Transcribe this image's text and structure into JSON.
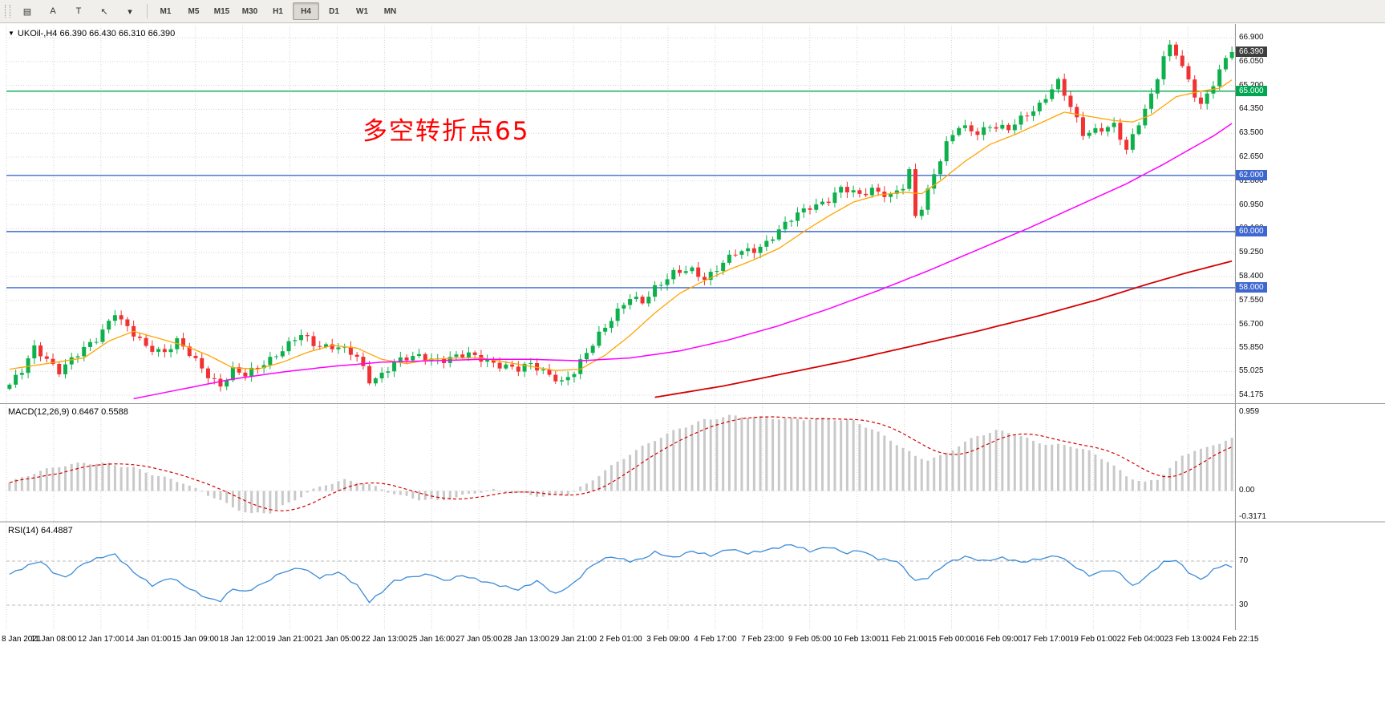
{
  "toolbar": {
    "tools": [
      {
        "name": "chart-objects",
        "glyph": "▤"
      },
      {
        "name": "text-tool",
        "glyph": "A"
      },
      {
        "name": "label-tool",
        "glyph": "T"
      },
      {
        "name": "cursor-tool",
        "glyph": "↖"
      },
      {
        "name": "tools-dropdown",
        "glyph": "▾"
      }
    ],
    "timeframes": [
      "M1",
      "M5",
      "M15",
      "M30",
      "H1",
      "H4",
      "D1",
      "W1",
      "MN"
    ],
    "active_timeframe": "H4"
  },
  "chart": {
    "title": "UKOil-,H4 66.390 66.430 66.310 66.390",
    "symbol": "UKOil-",
    "timeframe": "H4",
    "annotation": "多空转折点65",
    "current_price_label": "66.390",
    "price_axis_labels": [
      "66.900",
      "66.050",
      "65.200",
      "64.350",
      "63.500",
      "62.650",
      "61.800",
      "60.950",
      "60.100",
      "59.250",
      "58.400",
      "57.550",
      "56.700",
      "55.850",
      "55.025",
      "54.175"
    ],
    "time_axis_labels": [
      "8 Jan 2021",
      "11 Jan 08:00",
      "12 Jan 17:00",
      "14 Jan 01:00",
      "15 Jan 09:00",
      "18 Jan 12:00",
      "19 Jan 21:00",
      "21 Jan 05:00",
      "22 Jan 13:00",
      "25 Jan 16:00",
      "27 Jan 05:00",
      "28 Jan 13:00",
      "29 Jan 21:00",
      "2 Feb 01:00",
      "3 Feb 09:00",
      "4 Feb 17:00",
      "7 Feb 23:00",
      "9 Feb 05:00",
      "10 Feb 13:00",
      "11 Feb 21:00",
      "15 Feb 00:00",
      "16 Feb 09:00",
      "17 Feb 17:00",
      "19 Feb 01:00",
      "22 Feb 04:00",
      "23 Feb 13:00",
      "24 Feb 22:15"
    ],
    "horizontal_lines": [
      {
        "label": "65.000",
        "value": 65.0,
        "color": "#00a651"
      },
      {
        "label": "62.000",
        "value": 62.0,
        "color": "#3e68d0"
      },
      {
        "label": "60.000",
        "value": 60.0,
        "color": "#3e68d0"
      },
      {
        "label": "58.000",
        "value": 58.0,
        "color": "#3e68d0"
      }
    ]
  },
  "macd": {
    "title_label": "MACD(12,26,9)",
    "title_values": "0.6467 0.5588",
    "axis_labels": [
      "0.959",
      "0.00",
      "-0.3171"
    ]
  },
  "rsi": {
    "title_label": "RSI(14)",
    "title_value": "64.4887",
    "levels": [
      70,
      30
    ]
  },
  "colors": {
    "bull": "#0eb04c",
    "bear": "#f03232",
    "ma_fast": "#ffa500",
    "ma_mid": "#ff00ff",
    "ma_slow": "#d40000",
    "macd_hist": "#c9c9c9",
    "macd_signal": "#d40000",
    "rsi_line": "#3c8cd8",
    "grid": "#d4d4d4",
    "annotation": "#ff0000",
    "price_badge_bg": "#3f3f3f"
  },
  "chart_data": {
    "type": "candlestick",
    "symbol": "UKOil-",
    "timeframe": "H4",
    "bars": 198,
    "ylim": [
      53.89,
      67.33
    ],
    "ohlc_current": {
      "open": 66.39,
      "high": 66.43,
      "low": 66.31,
      "close": 66.39
    },
    "close_keyframes": [
      [
        0,
        54.55
      ],
      [
        2,
        55.0
      ],
      [
        4,
        55.85
      ],
      [
        6,
        55.5
      ],
      [
        8,
        55.05
      ],
      [
        11,
        55.6
      ],
      [
        14,
        56.2
      ],
      [
        17,
        57.15
      ],
      [
        18,
        56.8
      ],
      [
        20,
        56.3
      ],
      [
        22,
        55.9
      ],
      [
        25,
        55.75
      ],
      [
        27,
        56.1
      ],
      [
        29,
        55.6
      ],
      [
        32,
        54.9
      ],
      [
        34,
        54.55
      ],
      [
        36,
        55.05
      ],
      [
        38,
        54.85
      ],
      [
        41,
        55.35
      ],
      [
        44,
        55.8
      ],
      [
        47,
        56.3
      ],
      [
        49,
        56.0
      ],
      [
        53,
        55.9
      ],
      [
        56,
        55.5
      ],
      [
        58,
        54.7
      ],
      [
        60,
        54.95
      ],
      [
        62,
        55.35
      ],
      [
        66,
        55.55
      ],
      [
        70,
        55.45
      ],
      [
        74,
        55.6
      ],
      [
        77,
        55.45
      ],
      [
        79,
        55.25
      ],
      [
        82,
        55.05
      ],
      [
        84,
        55.3
      ],
      [
        87,
        54.95
      ],
      [
        89,
        54.6
      ],
      [
        91,
        54.95
      ],
      [
        93,
        55.7
      ],
      [
        95,
        56.4
      ],
      [
        97,
        56.9
      ],
      [
        100,
        57.6
      ],
      [
        102,
        57.5
      ],
      [
        104,
        58.05
      ],
      [
        107,
        58.5
      ],
      [
        110,
        58.6
      ],
      [
        112,
        58.35
      ],
      [
        115,
        58.9
      ],
      [
        117,
        59.2
      ],
      [
        120,
        59.35
      ],
      [
        122,
        59.65
      ],
      [
        124,
        60.05
      ],
      [
        127,
        60.6
      ],
      [
        129,
        60.9
      ],
      [
        132,
        61.15
      ],
      [
        134,
        61.5
      ],
      [
        137,
        61.3
      ],
      [
        139,
        61.55
      ],
      [
        142,
        61.25
      ],
      [
        144,
        61.55
      ],
      [
        145,
        62.1
      ],
      [
        146,
        60.55
      ],
      [
        147,
        60.9
      ],
      [
        149,
        62.1
      ],
      [
        151,
        63.1
      ],
      [
        153,
        63.7
      ],
      [
        156,
        63.55
      ],
      [
        158,
        63.8
      ],
      [
        161,
        63.6
      ],
      [
        163,
        64.0
      ],
      [
        166,
        64.55
      ],
      [
        168,
        65.1
      ],
      [
        169,
        65.3
      ],
      [
        171,
        64.4
      ],
      [
        173,
        63.5
      ],
      [
        175,
        63.65
      ],
      [
        178,
        63.75
      ],
      [
        180,
        62.85
      ],
      [
        182,
        63.9
      ],
      [
        184,
        64.9
      ],
      [
        186,
        66.2
      ],
      [
        187,
        66.55
      ],
      [
        188,
        66.3
      ],
      [
        189,
        65.8
      ],
      [
        191,
        64.9
      ],
      [
        192,
        64.55
      ],
      [
        194,
        65.3
      ],
      [
        196,
        66.15
      ],
      [
        197,
        66.39
      ]
    ],
    "ma_fast_keyframes": [
      [
        0,
        55.1
      ],
      [
        6,
        55.3
      ],
      [
        12,
        55.5
      ],
      [
        16,
        56.1
      ],
      [
        20,
        56.45
      ],
      [
        24,
        56.2
      ],
      [
        28,
        55.95
      ],
      [
        32,
        55.6
      ],
      [
        36,
        55.15
      ],
      [
        40,
        55.1
      ],
      [
        44,
        55.35
      ],
      [
        48,
        55.7
      ],
      [
        52,
        55.95
      ],
      [
        56,
        55.85
      ],
      [
        60,
        55.45
      ],
      [
        64,
        55.3
      ],
      [
        68,
        55.45
      ],
      [
        72,
        55.5
      ],
      [
        76,
        55.5
      ],
      [
        80,
        55.35
      ],
      [
        84,
        55.2
      ],
      [
        88,
        55.05
      ],
      [
        92,
        55.1
      ],
      [
        96,
        55.6
      ],
      [
        100,
        56.3
      ],
      [
        104,
        57.1
      ],
      [
        108,
        57.8
      ],
      [
        112,
        58.25
      ],
      [
        116,
        58.65
      ],
      [
        120,
        59.0
      ],
      [
        124,
        59.4
      ],
      [
        128,
        60.0
      ],
      [
        132,
        60.55
      ],
      [
        136,
        61.05
      ],
      [
        140,
        61.3
      ],
      [
        144,
        61.4
      ],
      [
        147,
        61.35
      ],
      [
        150,
        61.8
      ],
      [
        154,
        62.5
      ],
      [
        158,
        63.1
      ],
      [
        162,
        63.45
      ],
      [
        166,
        63.85
      ],
      [
        170,
        64.25
      ],
      [
        174,
        64.1
      ],
      [
        178,
        63.95
      ],
      [
        181,
        63.9
      ],
      [
        184,
        64.15
      ],
      [
        188,
        64.8
      ],
      [
        192,
        65.0
      ],
      [
        195,
        65.1
      ],
      [
        197,
        65.4
      ]
    ],
    "ma_mid_keyframes": [
      [
        20,
        54.05
      ],
      [
        28,
        54.4
      ],
      [
        36,
        54.75
      ],
      [
        44,
        55.0
      ],
      [
        52,
        55.2
      ],
      [
        60,
        55.35
      ],
      [
        68,
        55.4
      ],
      [
        76,
        55.45
      ],
      [
        84,
        55.45
      ],
      [
        92,
        55.4
      ],
      [
        100,
        55.5
      ],
      [
        108,
        55.75
      ],
      [
        116,
        56.15
      ],
      [
        124,
        56.65
      ],
      [
        132,
        57.25
      ],
      [
        140,
        57.9
      ],
      [
        148,
        58.6
      ],
      [
        156,
        59.35
      ],
      [
        164,
        60.1
      ],
      [
        172,
        60.9
      ],
      [
        180,
        61.7
      ],
      [
        186,
        62.4
      ],
      [
        190,
        62.9
      ],
      [
        194,
        63.4
      ],
      [
        197,
        63.85
      ]
    ],
    "ma_slow_keyframes": [
      [
        104,
        54.1
      ],
      [
        115,
        54.5
      ],
      [
        125,
        54.95
      ],
      [
        135,
        55.4
      ],
      [
        145,
        55.9
      ],
      [
        155,
        56.4
      ],
      [
        165,
        56.95
      ],
      [
        175,
        57.55
      ],
      [
        183,
        58.1
      ],
      [
        190,
        58.55
      ],
      [
        197,
        58.95
      ]
    ],
    "macd_keyframes": [
      [
        0,
        0.1
      ],
      [
        4,
        0.22
      ],
      [
        8,
        0.3
      ],
      [
        12,
        0.34
      ],
      [
        16,
        0.33
      ],
      [
        20,
        0.28
      ],
      [
        24,
        0.18
      ],
      [
        28,
        0.1
      ],
      [
        30,
        0.02
      ],
      [
        33,
        -0.08
      ],
      [
        36,
        -0.2
      ],
      [
        39,
        -0.28
      ],
      [
        42,
        -0.26
      ],
      [
        45,
        -0.15
      ],
      [
        48,
        -0.02
      ],
      [
        51,
        0.08
      ],
      [
        54,
        0.13
      ],
      [
        57,
        0.1
      ],
      [
        60,
        0.02
      ],
      [
        63,
        -0.06
      ],
      [
        66,
        -0.1
      ],
      [
        69,
        -0.12
      ],
      [
        72,
        -0.08
      ],
      [
        75,
        -0.02
      ],
      [
        78,
        0.01
      ],
      [
        81,
        -0.02
      ],
      [
        84,
        -0.05
      ],
      [
        87,
        -0.07
      ],
      [
        90,
        -0.04
      ],
      [
        93,
        0.08
      ],
      [
        96,
        0.25
      ],
      [
        100,
        0.45
      ],
      [
        104,
        0.62
      ],
      [
        108,
        0.76
      ],
      [
        112,
        0.86
      ],
      [
        116,
        0.91
      ],
      [
        120,
        0.9
      ],
      [
        124,
        0.88
      ],
      [
        128,
        0.87
      ],
      [
        132,
        0.88
      ],
      [
        136,
        0.85
      ],
      [
        139,
        0.75
      ],
      [
        142,
        0.62
      ],
      [
        144,
        0.52
      ],
      [
        146,
        0.42
      ],
      [
        148,
        0.38
      ],
      [
        150,
        0.42
      ],
      [
        153,
        0.55
      ],
      [
        156,
        0.67
      ],
      [
        159,
        0.73
      ],
      [
        162,
        0.7
      ],
      [
        165,
        0.6
      ],
      [
        168,
        0.56
      ],
      [
        171,
        0.55
      ],
      [
        174,
        0.48
      ],
      [
        177,
        0.36
      ],
      [
        180,
        0.18
      ],
      [
        183,
        0.1
      ],
      [
        185,
        0.14
      ],
      [
        187,
        0.28
      ],
      [
        189,
        0.42
      ],
      [
        191,
        0.5
      ],
      [
        193,
        0.52
      ],
      [
        195,
        0.58
      ],
      [
        197,
        0.6467
      ]
    ],
    "rsi_keyframes": [
      [
        0,
        58
      ],
      [
        3,
        66
      ],
      [
        5,
        70
      ],
      [
        7,
        60
      ],
      [
        9,
        55
      ],
      [
        12,
        68
      ],
      [
        15,
        74
      ],
      [
        17,
        76
      ],
      [
        20,
        60
      ],
      [
        23,
        48
      ],
      [
        26,
        55
      ],
      [
        29,
        45
      ],
      [
        32,
        36
      ],
      [
        34,
        34
      ],
      [
        36,
        45
      ],
      [
        38,
        42
      ],
      [
        41,
        50
      ],
      [
        44,
        60
      ],
      [
        47,
        64
      ],
      [
        50,
        55
      ],
      [
        53,
        60
      ],
      [
        56,
        48
      ],
      [
        58,
        33
      ],
      [
        60,
        42
      ],
      [
        62,
        52
      ],
      [
        65,
        56
      ],
      [
        68,
        58
      ],
      [
        70,
        52
      ],
      [
        73,
        57
      ],
      [
        76,
        52
      ],
      [
        79,
        48
      ],
      [
        82,
        44
      ],
      [
        85,
        52
      ],
      [
        88,
        40
      ],
      [
        91,
        50
      ],
      [
        93,
        62
      ],
      [
        95,
        70
      ],
      [
        97,
        74
      ],
      [
        100,
        70
      ],
      [
        102,
        72
      ],
      [
        104,
        78
      ],
      [
        107,
        73
      ],
      [
        110,
        79
      ],
      [
        113,
        75
      ],
      [
        116,
        81
      ],
      [
        119,
        77
      ],
      [
        122,
        80
      ],
      [
        126,
        85
      ],
      [
        129,
        79
      ],
      [
        132,
        83
      ],
      [
        135,
        77
      ],
      [
        137,
        80
      ],
      [
        140,
        72
      ],
      [
        143,
        70
      ],
      [
        146,
        52
      ],
      [
        148,
        55
      ],
      [
        151,
        68
      ],
      [
        154,
        74
      ],
      [
        157,
        70
      ],
      [
        160,
        73
      ],
      [
        163,
        69
      ],
      [
        166,
        72
      ],
      [
        169,
        75
      ],
      [
        172,
        64
      ],
      [
        174,
        57
      ],
      [
        177,
        62
      ],
      [
        179,
        59
      ],
      [
        181,
        47
      ],
      [
        183,
        55
      ],
      [
        186,
        69
      ],
      [
        188,
        71
      ],
      [
        190,
        60
      ],
      [
        192,
        53
      ],
      [
        194,
        62
      ],
      [
        196,
        67
      ],
      [
        197,
        64.4887
      ]
    ]
  }
}
